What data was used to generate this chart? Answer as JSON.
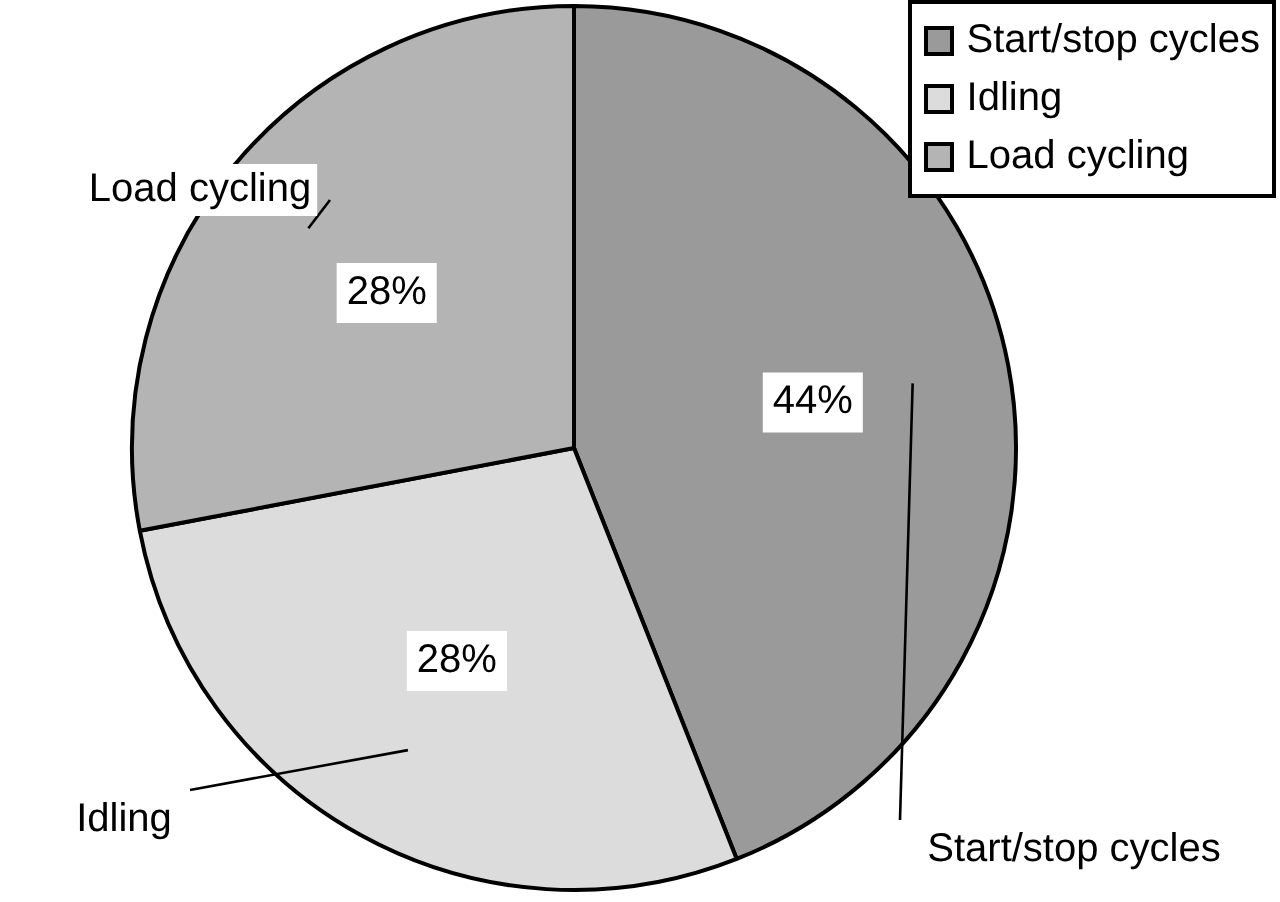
{
  "chart_data": {
    "type": "pie",
    "categories": [
      "Start/stop cycles",
      "Idling",
      "Load cycling"
    ],
    "values": [
      44,
      28,
      28
    ],
    "colors": [
      "#9a9a9a",
      "#dcdcdc",
      "#b4b4b4"
    ],
    "value_labels": [
      "44%",
      "28%",
      "28%"
    ],
    "legend": "top right"
  }
}
